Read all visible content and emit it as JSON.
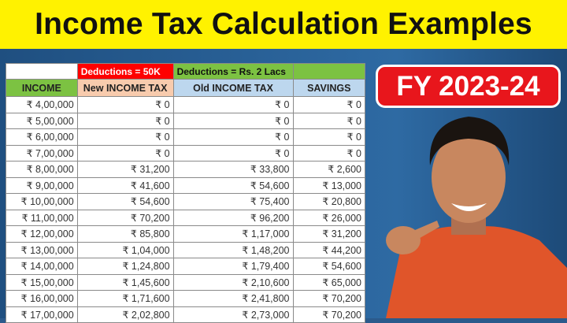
{
  "title": "Income Tax Calculation Examples",
  "badge": "FY 2023-24",
  "table": {
    "group_headers": [
      "",
      "Deductions = 50K",
      "Deductions = Rs. 2 Lacs",
      ""
    ],
    "columns": [
      "INCOME",
      "New INCOME TAX",
      "Old INCOME TAX",
      "SAVINGS"
    ],
    "rows": [
      [
        "₹ 4,00,000",
        "₹ 0",
        "₹ 0",
        "₹ 0"
      ],
      [
        "₹ 5,00,000",
        "₹ 0",
        "₹ 0",
        "₹ 0"
      ],
      [
        "₹ 6,00,000",
        "₹ 0",
        "₹ 0",
        "₹ 0"
      ],
      [
        "₹ 7,00,000",
        "₹ 0",
        "₹ 0",
        "₹ 0"
      ],
      [
        "₹ 8,00,000",
        "₹ 31,200",
        "₹ 33,800",
        "₹ 2,600"
      ],
      [
        "₹ 9,00,000",
        "₹ 41,600",
        "₹ 54,600",
        "₹ 13,000"
      ],
      [
        "₹ 10,00,000",
        "₹ 54,600",
        "₹ 75,400",
        "₹ 20,800"
      ],
      [
        "₹ 11,00,000",
        "₹ 70,200",
        "₹ 96,200",
        "₹ 26,000"
      ],
      [
        "₹ 12,00,000",
        "₹ 85,800",
        "₹ 1,17,000",
        "₹ 31,200"
      ],
      [
        "₹ 13,00,000",
        "₹ 1,04,000",
        "₹ 1,48,200",
        "₹ 44,200"
      ],
      [
        "₹ 14,00,000",
        "₹ 1,24,800",
        "₹ 1,79,400",
        "₹ 54,600"
      ],
      [
        "₹ 15,00,000",
        "₹ 1,45,600",
        "₹ 2,10,600",
        "₹ 65,000"
      ],
      [
        "₹ 16,00,000",
        "₹ 1,71,600",
        "₹ 2,41,800",
        "₹ 70,200"
      ],
      [
        "₹ 17,00,000",
        "₹ 2,02,800",
        "₹ 2,73,000",
        "₹ 70,200"
      ]
    ]
  },
  "colors": {
    "title_bg": "#fff200",
    "badge_bg": "#e8161c",
    "deductions_new": "#ff0000",
    "deductions_old": "#7cc242",
    "income_header": "#7cc242",
    "new_header": "#f8cbad",
    "old_header": "#bdd7ee",
    "savings_header": "#bdd7ee"
  }
}
